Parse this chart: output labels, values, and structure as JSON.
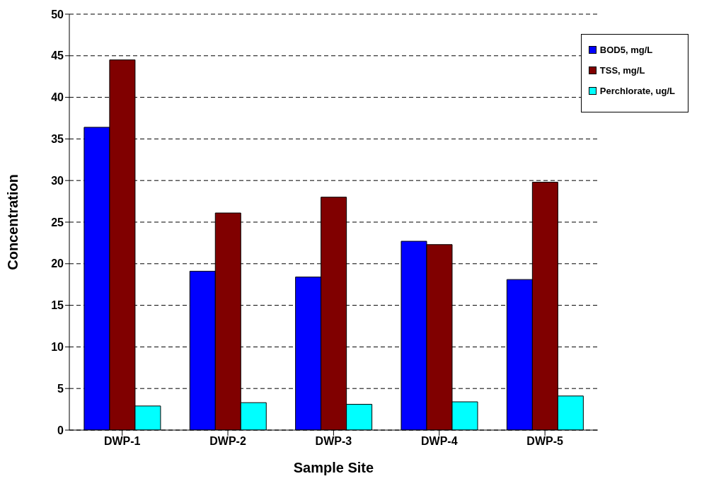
{
  "chart_data": {
    "type": "bar",
    "xlabel": "Sample Site",
    "ylabel": "Concentration",
    "categories": [
      "DWP-1",
      "DWP-2",
      "DWP-3",
      "DWP-4",
      "DWP-5"
    ],
    "series": [
      {
        "name": "BOD5, mg/L",
        "color": "#0000ff",
        "values": [
          36.4,
          19.1,
          18.4,
          22.7,
          18.1
        ]
      },
      {
        "name": "TSS, mg/L",
        "color": "#800000",
        "values": [
          44.5,
          26.1,
          28.0,
          22.3,
          29.8
        ]
      },
      {
        "name": "Perchlorate, ug/L",
        "color": "#00ffff",
        "values": [
          2.9,
          3.3,
          3.1,
          3.4,
          4.1
        ]
      }
    ],
    "ylim": [
      0,
      50
    ],
    "yticks": [
      0,
      5,
      10,
      15,
      20,
      25,
      30,
      35,
      40,
      45,
      50
    ],
    "grid": "y",
    "legend": "top right"
  }
}
